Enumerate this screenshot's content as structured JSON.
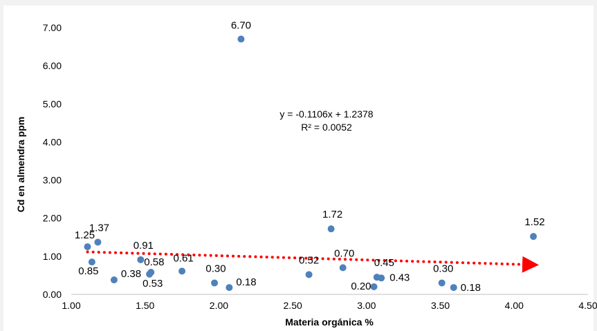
{
  "chart_data": {
    "type": "scatter",
    "xlabel": "Materia orgánica %",
    "ylabel": "Cd en almendra ppm",
    "xlim": [
      1.0,
      4.5
    ],
    "ylim": [
      0.0,
      7.0
    ],
    "xticks": [
      "1.00",
      "1.50",
      "2.00",
      "2.50",
      "3.00",
      "3.50",
      "4.00",
      "4.50"
    ],
    "yticks": [
      "0.00",
      "1.00",
      "2.00",
      "3.00",
      "4.00",
      "5.00",
      "6.00",
      "7.00"
    ],
    "grid": false,
    "marker_color": "#4f81bd",
    "points": [
      {
        "x": 1.11,
        "y": 1.25,
        "label": "1.25"
      },
      {
        "x": 1.18,
        "y": 1.37,
        "label": "1.37"
      },
      {
        "x": 1.14,
        "y": 0.85,
        "label": "0.85"
      },
      {
        "x": 1.29,
        "y": 0.38,
        "label": "0.38"
      },
      {
        "x": 1.47,
        "y": 0.91,
        "label": "0.91"
      },
      {
        "x": 1.54,
        "y": 0.58,
        "label": "0.58"
      },
      {
        "x": 1.53,
        "y": 0.53,
        "label": "0.53"
      },
      {
        "x": 1.75,
        "y": 0.61,
        "label": "0.61"
      },
      {
        "x": 1.97,
        "y": 0.3,
        "label": "0.30"
      },
      {
        "x": 2.07,
        "y": 0.18,
        "label": "0.18"
      },
      {
        "x": 2.15,
        "y": 6.7,
        "label": "6.70"
      },
      {
        "x": 2.61,
        "y": 0.52,
        "label": "0.52"
      },
      {
        "x": 2.76,
        "y": 1.72,
        "label": "1.72"
      },
      {
        "x": 2.84,
        "y": 0.7,
        "label": "0.70"
      },
      {
        "x": 3.05,
        "y": 0.2,
        "label": "0.20"
      },
      {
        "x": 3.07,
        "y": 0.45,
        "label": "0.45"
      },
      {
        "x": 3.1,
        "y": 0.43,
        "label": "0.43"
      },
      {
        "x": 3.51,
        "y": 0.3,
        "label": "0.30"
      },
      {
        "x": 3.59,
        "y": 0.18,
        "label": "0.18"
      },
      {
        "x": 4.13,
        "y": 1.52,
        "label": "1.52"
      }
    ],
    "trendline": {
      "type": "linear",
      "slope": -0.1106,
      "intercept": 1.2378,
      "x_start": 1.11,
      "x_end": 4.13,
      "color": "#ff0000",
      "style": "dotted",
      "arrow": true,
      "equation": "y = -0.1106x + 1.2378",
      "r2": "R² = 0.0052"
    }
  }
}
